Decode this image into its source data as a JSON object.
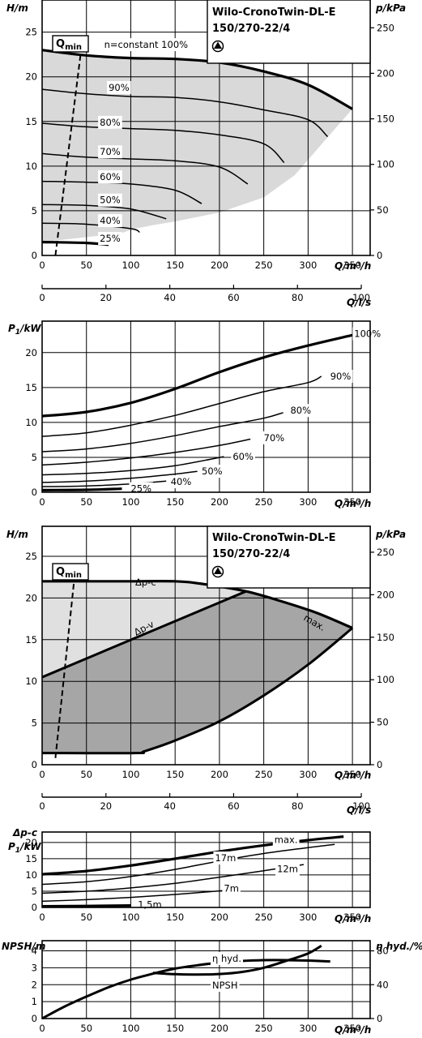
{
  "charts": {
    "c1": {
      "type": "line",
      "title": [
        "Wilo-CronoTwin-DL-E",
        "150/270-22/4"
      ],
      "xlabel": "Q/m³/h",
      "ylabel": "H/m",
      "y2label": "p/kPa",
      "xticks": [
        "0",
        "50",
        "100",
        "150",
        "200",
        "250",
        "300",
        "350"
      ],
      "yticks": [
        "0",
        "5",
        "10",
        "15",
        "20",
        "25"
      ],
      "y2ticks": [
        "0",
        "50",
        "100",
        "150",
        "200",
        "250"
      ],
      "xlim": [
        0,
        370
      ],
      "ylim": [
        0,
        28.6
      ],
      "y2lim": [
        0,
        280.5
      ],
      "qmin": "min",
      "qmin_prefix": "Q",
      "series": [
        {
          "name": "n=constant 100%",
          "w": 3.2,
          "label": "n=constant 100%",
          "lx": 70,
          "ly": 23.6,
          "points": [
            [
              0,
              23
            ],
            [
              50,
              22.4
            ],
            [
              100,
              22.1
            ],
            [
              150,
              22
            ],
            [
              200,
              21.6
            ],
            [
              250,
              20.6
            ],
            [
              300,
              19.1
            ],
            [
              350,
              16.4
            ]
          ]
        },
        {
          "name": "90%",
          "w": 1.5,
          "label": "90%",
          "lx": 75,
          "ly": 18.8,
          "points": [
            [
              0,
              18.6
            ],
            [
              50,
              18.1
            ],
            [
              100,
              17.8
            ],
            [
              150,
              17.7
            ],
            [
              200,
              17.2
            ],
            [
              250,
              16.3
            ],
            [
              300,
              15.2
            ],
            [
              322,
              13.3
            ]
          ]
        },
        {
          "name": "80%",
          "w": 1.5,
          "label": "80%",
          "lx": 65,
          "ly": 14.9,
          "points": [
            [
              0,
              14.8
            ],
            [
              50,
              14.4
            ],
            [
              100,
              14.2
            ],
            [
              150,
              14
            ],
            [
              200,
              13.5
            ],
            [
              250,
              12.5
            ],
            [
              273,
              10.4
            ]
          ]
        },
        {
          "name": "70%",
          "w": 1.5,
          "label": "70%",
          "lx": 65,
          "ly": 11.6,
          "points": [
            [
              0,
              11.4
            ],
            [
              50,
              11
            ],
            [
              100,
              10.8
            ],
            [
              150,
              10.6
            ],
            [
              200,
              9.9
            ],
            [
              232,
              8
            ]
          ]
        },
        {
          "name": "60%",
          "w": 1.5,
          "label": "60%",
          "lx": 65,
          "ly": 8.8,
          "points": [
            [
              0,
              8.3
            ],
            [
              50,
              8.2
            ],
            [
              100,
              8
            ],
            [
              150,
              7.3
            ],
            [
              180,
              5.8
            ]
          ]
        },
        {
          "name": "50%",
          "w": 1.5,
          "label": "50%",
          "lx": 65,
          "ly": 6.2,
          "points": [
            [
              0,
              5.7
            ],
            [
              50,
              5.6
            ],
            [
              100,
              5.2
            ],
            [
              140,
              4.1
            ]
          ]
        },
        {
          "name": "40%",
          "w": 1.5,
          "label": "40%",
          "lx": 65,
          "ly": 3.9,
          "points": [
            [
              0,
              3.6
            ],
            [
              50,
              3.5
            ],
            [
              100,
              3
            ],
            [
              110,
              2.6
            ]
          ]
        },
        {
          "name": "25%",
          "w": 3.2,
          "label": "25%",
          "lx": 65,
          "ly": 1.9,
          "points": [
            [
              0,
              1.5
            ],
            [
              50,
              1.4
            ],
            [
              75,
              1.2
            ]
          ]
        }
      ],
      "region": [
        [
          0,
          23
        ],
        [
          50,
          22.4
        ],
        [
          100,
          22.1
        ],
        [
          150,
          22
        ],
        [
          200,
          21.6
        ],
        [
          250,
          20.6
        ],
        [
          300,
          19.1
        ],
        [
          350,
          16.4
        ],
        [
          320,
          13
        ],
        [
          285,
          9
        ],
        [
          250,
          6.5
        ],
        [
          200,
          4.8
        ],
        [
          150,
          3.8
        ],
        [
          125,
          3.4
        ],
        [
          100,
          2.9
        ],
        [
          90,
          2.5
        ],
        [
          0,
          1.5
        ]
      ],
      "qmin_line": [
        [
          15,
          0
        ],
        [
          44,
          23
        ]
      ]
    },
    "axis_ls_1": {
      "label": "Q/l/s",
      "ticks": [
        "0",
        "20",
        "40",
        "60",
        "80",
        "100"
      ],
      "values": [
        0,
        20,
        40,
        60,
        80,
        100
      ]
    },
    "c2": {
      "type": "line",
      "ylabel": "P1/kW",
      "xlabel": "Q/m³/h",
      "xticks": [
        "0",
        "50",
        "100",
        "150",
        "200",
        "250",
        "300",
        "350"
      ],
      "yticks": [
        "0",
        "5",
        "10",
        "15",
        "20"
      ],
      "xlim": [
        0,
        370
      ],
      "ylim": [
        0,
        24.5
      ],
      "series": [
        {
          "name": "100%",
          "w": 3.2,
          "label": "100%",
          "lx": 352,
          "ly": 22.7,
          "points": [
            [
              0,
              10.9
            ],
            [
              50,
              11.5
            ],
            [
              100,
              12.8
            ],
            [
              150,
              14.8
            ],
            [
              200,
              17.2
            ],
            [
              250,
              19.3
            ],
            [
              300,
              21
            ],
            [
              350,
              22.5
            ]
          ]
        },
        {
          "name": "90%",
          "w": 1.5,
          "label": "90%",
          "lx": 325,
          "ly": 16.6,
          "points": [
            [
              0,
              8
            ],
            [
              50,
              8.5
            ],
            [
              100,
              9.6
            ],
            [
              150,
              11
            ],
            [
              200,
              12.7
            ],
            [
              250,
              14.4
            ],
            [
              300,
              15.7
            ],
            [
              315,
              16.6
            ]
          ]
        },
        {
          "name": "80%",
          "w": 1.5,
          "label": "80%",
          "lx": 280,
          "ly": 11.7,
          "points": [
            [
              0,
              5.8
            ],
            [
              50,
              6.2
            ],
            [
              100,
              7
            ],
            [
              150,
              8.1
            ],
            [
              200,
              9.4
            ],
            [
              250,
              10.6
            ],
            [
              272,
              11.4
            ]
          ]
        },
        {
          "name": "70%",
          "w": 1.5,
          "label": "70%",
          "lx": 250,
          "ly": 7.8,
          "points": [
            [
              0,
              3.9
            ],
            [
              50,
              4.3
            ],
            [
              100,
              4.9
            ],
            [
              150,
              5.7
            ],
            [
              200,
              6.7
            ],
            [
              235,
              7.6
            ]
          ]
        },
        {
          "name": "60%",
          "w": 1.5,
          "label": "60%",
          "lx": 215,
          "ly": 5.1,
          "points": [
            [
              0,
              2.5
            ],
            [
              50,
              2.7
            ],
            [
              100,
              3.1
            ],
            [
              150,
              3.8
            ],
            [
              205,
              5.1
            ]
          ]
        },
        {
          "name": "50%",
          "w": 1.5,
          "label": "50%",
          "lx": 180,
          "ly": 3.0,
          "points": [
            [
              0,
              1.4
            ],
            [
              50,
              1.6
            ],
            [
              100,
              2
            ],
            [
              150,
              2.6
            ],
            [
              175,
              3
            ]
          ]
        },
        {
          "name": "40%",
          "w": 1.5,
          "label": "40%",
          "lx": 145,
          "ly": 1.5,
          "points": [
            [
              0,
              0.8
            ],
            [
              50,
              0.9
            ],
            [
              100,
              1.2
            ],
            [
              140,
              1.6
            ]
          ]
        },
        {
          "name": "25%",
          "w": 3.2,
          "label": "25%",
          "lx": 100,
          "ly": 0.5,
          "points": [
            [
              0,
              0.3
            ],
            [
              50,
              0.35
            ],
            [
              90,
              0.5
            ]
          ]
        }
      ]
    },
    "c3": {
      "type": "area",
      "title": [
        "Wilo-CronoTwin-DL-E",
        "150/270-22/4"
      ],
      "xlabel": "Q/m³/h",
      "ylabel": "H/m",
      "y2label": "p/kPa",
      "xticks": [
        "0",
        "50",
        "100",
        "150",
        "200",
        "250",
        "300",
        "350"
      ],
      "yticks": [
        "0",
        "5",
        "10",
        "15",
        "20",
        "25"
      ],
      "y2ticks": [
        "0",
        "50",
        "100",
        "150",
        "200",
        "250"
      ],
      "xlim": [
        0,
        370
      ],
      "ylim": [
        0,
        28.6
      ],
      "y2lim": [
        0,
        280.5
      ],
      "qmin": "min",
      "qmin_prefix": "Q",
      "dpc_label": "Δp-c",
      "dpv_label": "Δp-v",
      "max_label": "max.",
      "max_curve": [
        [
          0,
          22
        ],
        [
          50,
          22
        ],
        [
          100,
          22
        ],
        [
          150,
          22
        ],
        [
          180,
          21.7
        ],
        [
          230,
          20.8
        ],
        [
          270,
          19.6
        ],
        [
          310,
          18.2
        ],
        [
          350,
          16.4
        ]
      ],
      "dpv_line": [
        [
          0,
          10.5
        ],
        [
          230,
          20.8
        ]
      ],
      "bottom_curve": [
        [
          0,
          1.4
        ],
        [
          105,
          1.4
        ],
        [
          115,
          1.6
        ],
        [
          150,
          2.9
        ],
        [
          200,
          5.2
        ],
        [
          250,
          8.3
        ],
        [
          300,
          12
        ],
        [
          350,
          16.4
        ]
      ],
      "qmin_line": [
        [
          15,
          0.8
        ],
        [
          36,
          22
        ]
      ]
    },
    "axis_ls_2": {
      "label": "Q/l/s",
      "ticks": [
        "0",
        "20",
        "40",
        "60",
        "80",
        "100"
      ],
      "values": [
        0,
        20,
        40,
        60,
        80,
        100
      ]
    },
    "c4": {
      "type": "line",
      "ylabel_top": "Δp-c",
      "ylabel": "P1/kW",
      "xlabel": "Q/m³/h",
      "xticks": [
        "0",
        "50",
        "100",
        "150",
        "200",
        "250",
        "300",
        "350"
      ],
      "yticks": [
        "0",
        "5",
        "10",
        "15",
        "20"
      ],
      "xlim": [
        0,
        370
      ],
      "ylim": [
        0,
        23.2
      ],
      "series": [
        {
          "name": "max.",
          "w": 3.2,
          "label": "max.",
          "lx": 262,
          "ly": 20.8,
          "points": [
            [
              0,
              10.2
            ],
            [
              50,
              11.2
            ],
            [
              100,
              12.9
            ],
            [
              150,
              15
            ],
            [
              200,
              17.2
            ],
            [
              250,
              19.1
            ],
            [
              300,
              20.7
            ],
            [
              340,
              21.8
            ]
          ]
        },
        {
          "name": "17m",
          "w": 1.5,
          "label": "17m",
          "lx": 195,
          "ly": 15.2,
          "points": [
            [
              0,
              7.1
            ],
            [
              50,
              7.9
            ],
            [
              100,
              9.5
            ],
            [
              150,
              11.7
            ],
            [
              200,
              14.3
            ],
            [
              250,
              16.6
            ],
            [
              300,
              18.4
            ],
            [
              330,
              19.4
            ]
          ]
        },
        {
          "name": "12m",
          "w": 1.5,
          "label": "12m",
          "lx": 265,
          "ly": 11.8,
          "points": [
            [
              0,
              4.4
            ],
            [
              50,
              5
            ],
            [
              100,
              6
            ],
            [
              150,
              7.4
            ],
            [
              200,
              9.3
            ],
            [
              250,
              11.3
            ],
            [
              295,
              13.2
            ]
          ]
        },
        {
          "name": "7m",
          "w": 1.5,
          "label": "7m",
          "lx": 205,
          "ly": 5.9,
          "points": [
            [
              0,
              1.9
            ],
            [
              50,
              2.4
            ],
            [
              100,
              3.1
            ],
            [
              150,
              4
            ],
            [
              200,
              5.1
            ],
            [
              222,
              5.8
            ]
          ]
        },
        {
          "name": "1.5m",
          "w": 3.2,
          "label": "1,5m",
          "lx": 108,
          "ly": 0.9,
          "points": [
            [
              0,
              0.35
            ],
            [
              50,
              0.45
            ],
            [
              100,
              0.6
            ]
          ]
        }
      ]
    },
    "c5": {
      "type": "line",
      "ylabel": "NPSH/m",
      "y2label": "η hyd./%",
      "xlabel": "Q/m³/h",
      "xticks": [
        "0",
        "50",
        "100",
        "150",
        "200",
        "250",
        "300",
        "350"
      ],
      "yticks": [
        "0",
        "1",
        "2",
        "3",
        "4"
      ],
      "y2ticks": [
        "0",
        "40",
        "80"
      ],
      "xlim": [
        0,
        370
      ],
      "ylim": [
        0,
        4.6
      ],
      "y2lim": [
        0,
        92
      ],
      "eta_label": "η hyd.",
      "npsh_label": "NPSH",
      "eta": [
        [
          0,
          0
        ],
        [
          25,
          14
        ],
        [
          50,
          26
        ],
        [
          75,
          37
        ],
        [
          100,
          46
        ],
        [
          125,
          53
        ],
        [
          150,
          59
        ],
        [
          175,
          63
        ],
        [
          200,
          66
        ],
        [
          225,
          68
        ],
        [
          250,
          69
        ],
        [
          275,
          69
        ],
        [
          300,
          68.5
        ],
        [
          325,
          67.5
        ]
      ],
      "npsh": [
        [
          125,
          2.7
        ],
        [
          150,
          2.62
        ],
        [
          175,
          2.6
        ],
        [
          200,
          2.63
        ],
        [
          225,
          2.75
        ],
        [
          250,
          3
        ],
        [
          275,
          3.4
        ],
        [
          300,
          3.85
        ],
        [
          315,
          4.3
        ]
      ]
    }
  }
}
